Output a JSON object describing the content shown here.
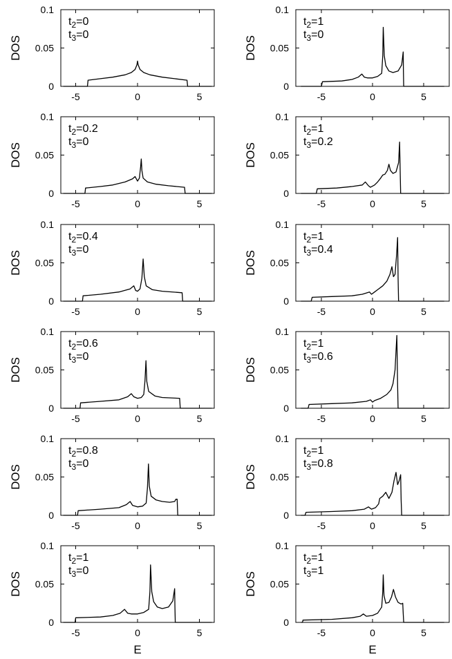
{
  "chart_data": [
    {
      "type": "line",
      "title": "",
      "annotation": {
        "t2": "0",
        "t3": "0"
      },
      "xlabel": "",
      "ylabel": "DOS",
      "xlim": [
        -6.2,
        6.2
      ],
      "ylim": [
        0,
        0.1
      ],
      "xticks": [
        -5,
        0,
        5
      ],
      "yticks": [
        0,
        0.05,
        0.1
      ],
      "x": [
        -6,
        -4.05,
        -4,
        -3,
        -2,
        -1,
        -0.5,
        -0.2,
        -0.05,
        0,
        0.05,
        0.2,
        0.5,
        1,
        2,
        3,
        4,
        4.05,
        6
      ],
      "y": [
        0,
        0,
        0.008,
        0.01,
        0.012,
        0.015,
        0.018,
        0.022,
        0.028,
        0.033,
        0.028,
        0.022,
        0.018,
        0.015,
        0.012,
        0.01,
        0.008,
        0,
        0
      ]
    },
    {
      "type": "line",
      "title": "",
      "annotation": {
        "t2": "1",
        "t3": "0"
      },
      "xlabel": "",
      "ylabel": "DOS",
      "xlim": [
        -7.5,
        7.5
      ],
      "ylim": [
        0,
        0.1
      ],
      "xticks": [
        -5,
        0,
        5
      ],
      "yticks": [
        0,
        0.05,
        0.1
      ],
      "x": [
        -7,
        -5,
        -4.9,
        -3,
        -2,
        -1.4,
        -1.05,
        -0.8,
        -0.5,
        0,
        0.5,
        0.9,
        1.0,
        1.05,
        1.15,
        1.3,
        1.6,
        2,
        2.5,
        2.85,
        3.0,
        3.02,
        3.05,
        7
      ],
      "y": [
        0,
        0,
        0.006,
        0.007,
        0.009,
        0.012,
        0.016,
        0.012,
        0.011,
        0.011,
        0.013,
        0.017,
        0.04,
        0.077,
        0.04,
        0.027,
        0.02,
        0.018,
        0.02,
        0.028,
        0.045,
        0.02,
        0,
        0
      ]
    },
    {
      "type": "line",
      "title": "",
      "annotation": {
        "t2": "0.2",
        "t3": "0"
      },
      "xlabel": "",
      "ylabel": "DOS",
      "xlim": [
        -6.2,
        6.2
      ],
      "ylim": [
        0,
        0.1
      ],
      "xticks": [
        -5,
        0,
        5
      ],
      "yticks": [
        0,
        0.05,
        0.1
      ],
      "x": [
        -6,
        -4.25,
        -4.2,
        -3,
        -2,
        -1,
        -0.4,
        -0.2,
        0,
        0.15,
        0.25,
        0.3,
        0.35,
        0.45,
        0.8,
        1.5,
        2.5,
        3.8,
        3.85,
        6
      ],
      "y": [
        0,
        0,
        0.007,
        0.009,
        0.011,
        0.015,
        0.019,
        0.022,
        0.016,
        0.02,
        0.035,
        0.045,
        0.03,
        0.02,
        0.015,
        0.012,
        0.01,
        0.008,
        0,
        0
      ]
    },
    {
      "type": "line",
      "title": "",
      "annotation": {
        "t2": "1",
        "t3": "0.2"
      },
      "xlabel": "",
      "ylabel": "DOS",
      "xlim": [
        -7.5,
        7.5
      ],
      "ylim": [
        0,
        0.1
      ],
      "xticks": [
        -5,
        0,
        5
      ],
      "yticks": [
        0,
        0.05,
        0.1
      ],
      "x": [
        -7,
        -5.5,
        -5.4,
        -3.5,
        -2,
        -1,
        -0.7,
        -0.4,
        -0.2,
        0.2,
        0.5,
        0.8,
        1.0,
        1.2,
        1.45,
        1.6,
        1.75,
        2.0,
        2.3,
        2.55,
        2.65,
        2.7,
        2.75,
        7
      ],
      "y": [
        0,
        0,
        0.006,
        0.007,
        0.009,
        0.011,
        0.015,
        0.01,
        0.008,
        0.011,
        0.015,
        0.02,
        0.024,
        0.025,
        0.03,
        0.038,
        0.03,
        0.026,
        0.028,
        0.04,
        0.067,
        0.03,
        0,
        0
      ]
    },
    {
      "type": "line",
      "title": "",
      "annotation": {
        "t2": "0.4",
        "t3": "0"
      },
      "xlabel": "",
      "ylabel": "DOS",
      "xlim": [
        -6.2,
        6.2
      ],
      "ylim": [
        0,
        0.1
      ],
      "xticks": [
        -5,
        0,
        5
      ],
      "yticks": [
        0,
        0.05,
        0.1
      ],
      "x": [
        -6,
        -4.45,
        -4.4,
        -3,
        -1.5,
        -0.6,
        -0.3,
        -0.15,
        0,
        0.2,
        0.35,
        0.45,
        0.55,
        0.7,
        1.2,
        2,
        3.6,
        3.65,
        6
      ],
      "y": [
        0,
        0,
        0.007,
        0.009,
        0.012,
        0.016,
        0.02,
        0.014,
        0.013,
        0.016,
        0.03,
        0.055,
        0.032,
        0.02,
        0.015,
        0.013,
        0.011,
        0,
        0
      ]
    },
    {
      "type": "line",
      "title": "",
      "annotation": {
        "t2": "1",
        "t3": "0.4"
      },
      "xlabel": "",
      "ylabel": "DOS",
      "xlim": [
        -7.5,
        7.5
      ],
      "ylim": [
        0,
        0.1
      ],
      "xticks": [
        -5,
        0,
        5
      ],
      "yticks": [
        0,
        0.05,
        0.1
      ],
      "x": [
        -7,
        -6,
        -5.9,
        -4,
        -2,
        -1,
        -0.3,
        -0.1,
        0.1,
        0.5,
        1.0,
        1.4,
        1.7,
        1.9,
        2.05,
        2.2,
        2.35,
        2.45,
        2.5,
        2.55,
        7
      ],
      "y": [
        0,
        0,
        0.005,
        0.006,
        0.007,
        0.009,
        0.012,
        0.009,
        0.011,
        0.015,
        0.02,
        0.026,
        0.035,
        0.045,
        0.032,
        0.035,
        0.06,
        0.083,
        0.03,
        0,
        0
      ]
    },
    {
      "type": "line",
      "title": "",
      "annotation": {
        "t2": "0.6",
        "t3": "0"
      },
      "xlabel": "",
      "ylabel": "DOS",
      "xlim": [
        -6.2,
        6.2
      ],
      "ylim": [
        0,
        0.1
      ],
      "xticks": [
        -5,
        0,
        5
      ],
      "yticks": [
        0,
        0.05,
        0.1
      ],
      "x": [
        -6,
        -4.65,
        -4.6,
        -3,
        -1.5,
        -0.8,
        -0.5,
        -0.3,
        0,
        0.3,
        0.5,
        0.6,
        0.68,
        0.75,
        0.9,
        1.4,
        2,
        3.4,
        3.45,
        6
      ],
      "y": [
        0,
        0,
        0.007,
        0.009,
        0.011,
        0.015,
        0.019,
        0.015,
        0.013,
        0.014,
        0.018,
        0.035,
        0.062,
        0.035,
        0.022,
        0.016,
        0.014,
        0.013,
        0,
        0
      ]
    },
    {
      "type": "line",
      "title": "",
      "annotation": {
        "t2": "1",
        "t3": "0.6"
      },
      "xlabel": "",
      "ylabel": "DOS",
      "xlim": [
        -7.5,
        7.5
      ],
      "ylim": [
        0,
        0.1
      ],
      "xticks": [
        -5,
        0,
        5
      ],
      "yticks": [
        0,
        0.05,
        0.1
      ],
      "x": [
        -7,
        -6.3,
        -6.2,
        -4,
        -2,
        -0.6,
        -0.2,
        0,
        0.2,
        0.8,
        1.4,
        1.8,
        2.0,
        2.2,
        2.3,
        2.38,
        2.45,
        2.5,
        7
      ],
      "y": [
        0,
        0,
        0.005,
        0.006,
        0.007,
        0.009,
        0.011,
        0.008,
        0.01,
        0.013,
        0.018,
        0.024,
        0.032,
        0.05,
        0.075,
        0.095,
        0.03,
        0,
        0
      ]
    },
    {
      "type": "line",
      "title": "",
      "annotation": {
        "t2": "0.8",
        "t3": "0"
      },
      "xlabel": "",
      "ylabel": "DOS",
      "xlim": [
        -6.2,
        6.2
      ],
      "ylim": [
        0,
        0.1
      ],
      "xticks": [
        -5,
        0,
        5
      ],
      "yticks": [
        0,
        0.05,
        0.1
      ],
      "x": [
        -6,
        -4.85,
        -4.8,
        -3,
        -1.5,
        -0.9,
        -0.6,
        -0.4,
        0,
        0.4,
        0.7,
        0.8,
        0.88,
        0.95,
        1.1,
        1.5,
        2,
        2.6,
        3.0,
        3.1,
        3.2,
        3.25,
        6
      ],
      "y": [
        0,
        0,
        0.006,
        0.008,
        0.01,
        0.014,
        0.018,
        0.013,
        0.011,
        0.012,
        0.016,
        0.035,
        0.067,
        0.038,
        0.025,
        0.02,
        0.018,
        0.017,
        0.018,
        0.021,
        0.021,
        0,
        0
      ]
    },
    {
      "type": "line",
      "title": "",
      "annotation": {
        "t2": "1",
        "t3": "0.8"
      },
      "xlabel": "",
      "ylabel": "DOS",
      "xlim": [
        -7.5,
        7.5
      ],
      "ylim": [
        0,
        0.1
      ],
      "xticks": [
        -5,
        0,
        5
      ],
      "yticks": [
        0,
        0.05,
        0.1
      ],
      "x": [
        -7,
        -6.6,
        -6.5,
        -4,
        -2,
        -0.8,
        -0.4,
        -0.1,
        0.3,
        0.6,
        0.7,
        1.0,
        1.3,
        1.6,
        1.9,
        2.1,
        2.3,
        2.45,
        2.6,
        2.75,
        2.8,
        2.85,
        7
      ],
      "y": [
        0,
        0,
        0.004,
        0.005,
        0.006,
        0.008,
        0.011,
        0.008,
        0.01,
        0.015,
        0.022,
        0.025,
        0.03,
        0.022,
        0.03,
        0.045,
        0.056,
        0.04,
        0.045,
        0.053,
        0.02,
        0,
        0
      ]
    },
    {
      "type": "line",
      "title": "",
      "annotation": {
        "t2": "1",
        "t3": "0"
      },
      "xlabel": "E",
      "ylabel": "DOS",
      "xlim": [
        -6.2,
        6.2
      ],
      "ylim": [
        0,
        0.1
      ],
      "xticks": [
        -5,
        0,
        5
      ],
      "yticks": [
        0,
        0.05,
        0.1
      ],
      "x": [
        -6,
        -5.05,
        -5.0,
        -3,
        -2,
        -1.4,
        -1.05,
        -0.8,
        -0.5,
        0,
        0.5,
        0.9,
        1.0,
        1.05,
        1.15,
        1.3,
        1.6,
        2,
        2.5,
        2.85,
        3.0,
        3.02,
        3.05,
        6
      ],
      "y": [
        0,
        0,
        0.006,
        0.007,
        0.009,
        0.012,
        0.017,
        0.012,
        0.011,
        0.011,
        0.013,
        0.017,
        0.04,
        0.075,
        0.04,
        0.027,
        0.02,
        0.018,
        0.02,
        0.028,
        0.044,
        0.02,
        0,
        0
      ]
    },
    {
      "type": "line",
      "title": "",
      "annotation": {
        "t2": "1",
        "t3": "1"
      },
      "xlabel": "E",
      "ylabel": "DOS",
      "xlim": [
        -7.5,
        7.5
      ],
      "ylim": [
        0,
        0.1
      ],
      "xticks": [
        -5,
        0,
        5
      ],
      "yticks": [
        0,
        0.05,
        0.1
      ],
      "x": [
        -7,
        -6.85,
        -6.8,
        -4,
        -2,
        -1.2,
        -0.9,
        -0.6,
        0,
        0.5,
        0.9,
        1.0,
        1.05,
        1.12,
        1.3,
        1.6,
        1.85,
        2.05,
        2.25,
        2.5,
        2.8,
        2.95,
        3.0,
        3.05,
        7
      ],
      "y": [
        0,
        0,
        0.003,
        0.004,
        0.006,
        0.008,
        0.011,
        0.008,
        0.009,
        0.012,
        0.02,
        0.04,
        0.062,
        0.035,
        0.025,
        0.026,
        0.033,
        0.043,
        0.033,
        0.026,
        0.024,
        0.025,
        0.012,
        0,
        0
      ]
    }
  ]
}
